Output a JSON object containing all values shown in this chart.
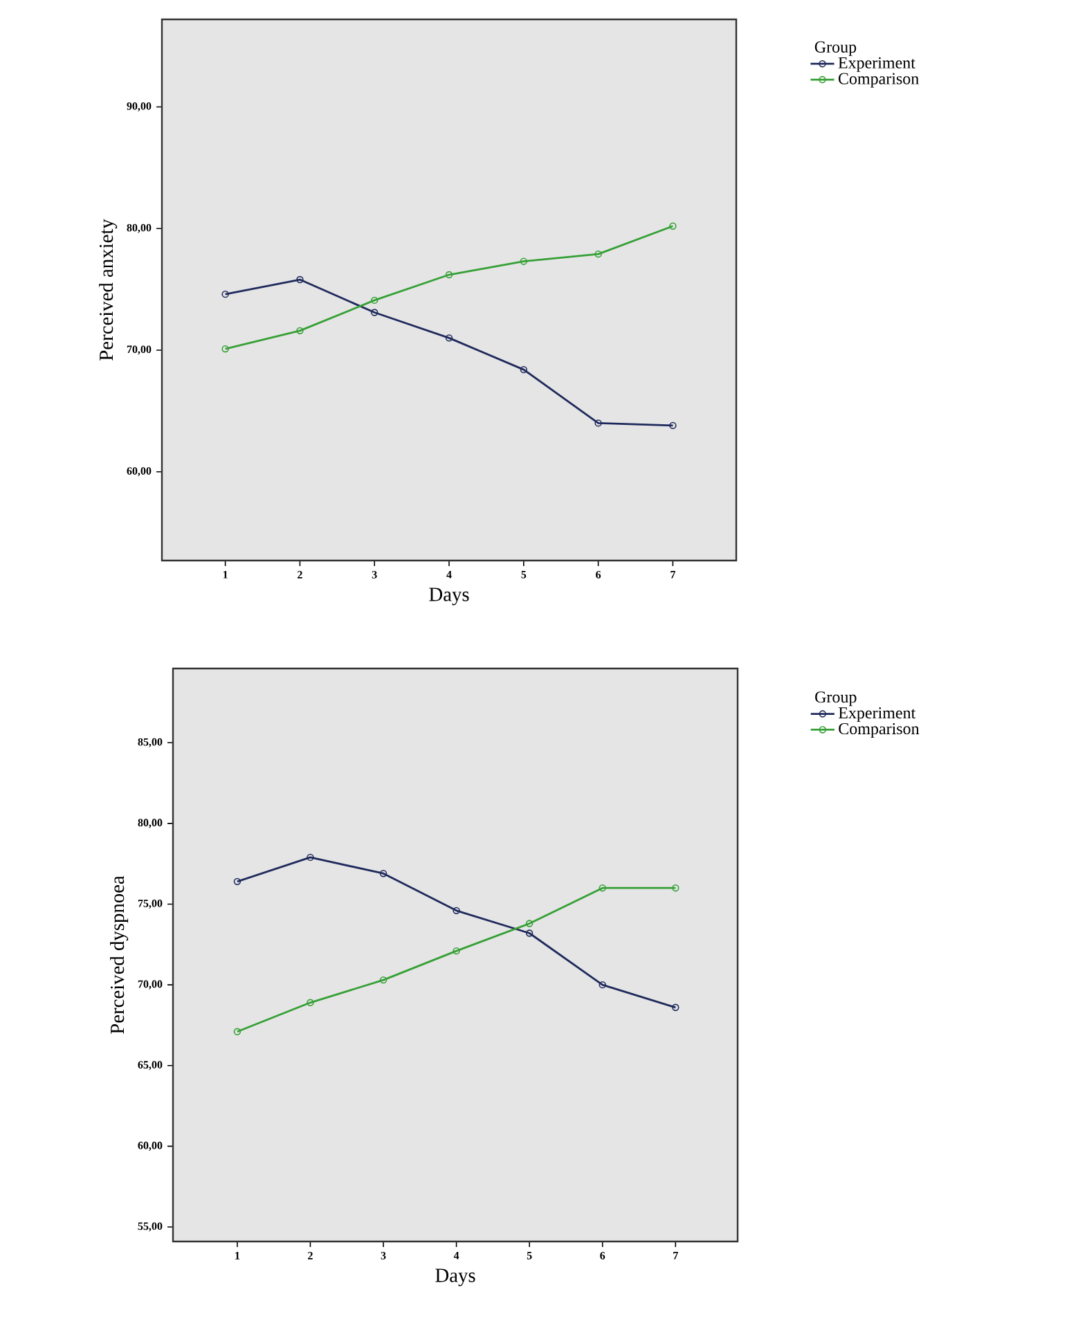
{
  "chart_data": [
    {
      "type": "line",
      "xlabel": "Days",
      "ylabel": "Perceived anxiety",
      "legend_title": "Group",
      "legend": "right",
      "marker": "circle",
      "line_style": "solid",
      "x": [
        1,
        2,
        3,
        4,
        5,
        6,
        7
      ],
      "xlim": [
        0.15,
        7.85
      ],
      "xticks": [
        1,
        2,
        3,
        4,
        5,
        6,
        7
      ],
      "ylim": [
        52.7,
        97.2
      ],
      "yticks": [
        {
          "value": 60,
          "label": "60,00"
        },
        {
          "value": 70,
          "label": "70,00"
        },
        {
          "value": 80,
          "label": "80,00"
        },
        {
          "value": 90,
          "label": "90,00"
        }
      ],
      "series": [
        {
          "name": "Experiment",
          "color": "#1f2a5c",
          "values": [
            74.6,
            75.8,
            73.1,
            71.0,
            68.4,
            64.0,
            63.8
          ]
        },
        {
          "name": "Comparison",
          "color": "#35a035",
          "values": [
            70.1,
            71.6,
            74.1,
            76.2,
            77.3,
            77.9,
            80.2
          ]
        }
      ]
    },
    {
      "type": "line",
      "xlabel": "Days",
      "ylabel": "Perceived dyspnoea",
      "legend_title": "Group",
      "legend": "right",
      "marker": "circle",
      "line_style": "solid",
      "x": [
        1,
        2,
        3,
        4,
        5,
        6,
        7
      ],
      "xlim": [
        0.12,
        7.85
      ],
      "xticks": [
        1,
        2,
        3,
        4,
        5,
        6,
        7
      ],
      "ylim": [
        54.1,
        89.6
      ],
      "yticks": [
        {
          "value": 55,
          "label": "55,00"
        },
        {
          "value": 60,
          "label": "60,00"
        },
        {
          "value": 65,
          "label": "65,00"
        },
        {
          "value": 70,
          "label": "70,00"
        },
        {
          "value": 75,
          "label": "75,00"
        },
        {
          "value": 80,
          "label": "80,00"
        },
        {
          "value": 85,
          "label": "85,00"
        }
      ],
      "series": [
        {
          "name": "Experiment",
          "color": "#1f2a5c",
          "values": [
            76.4,
            77.9,
            76.9,
            74.6,
            73.2,
            70.0,
            68.6
          ]
        },
        {
          "name": "Comparison",
          "color": "#35a035",
          "values": [
            67.1,
            68.9,
            70.3,
            72.1,
            73.8,
            76.0,
            76.0
          ]
        }
      ]
    }
  ]
}
